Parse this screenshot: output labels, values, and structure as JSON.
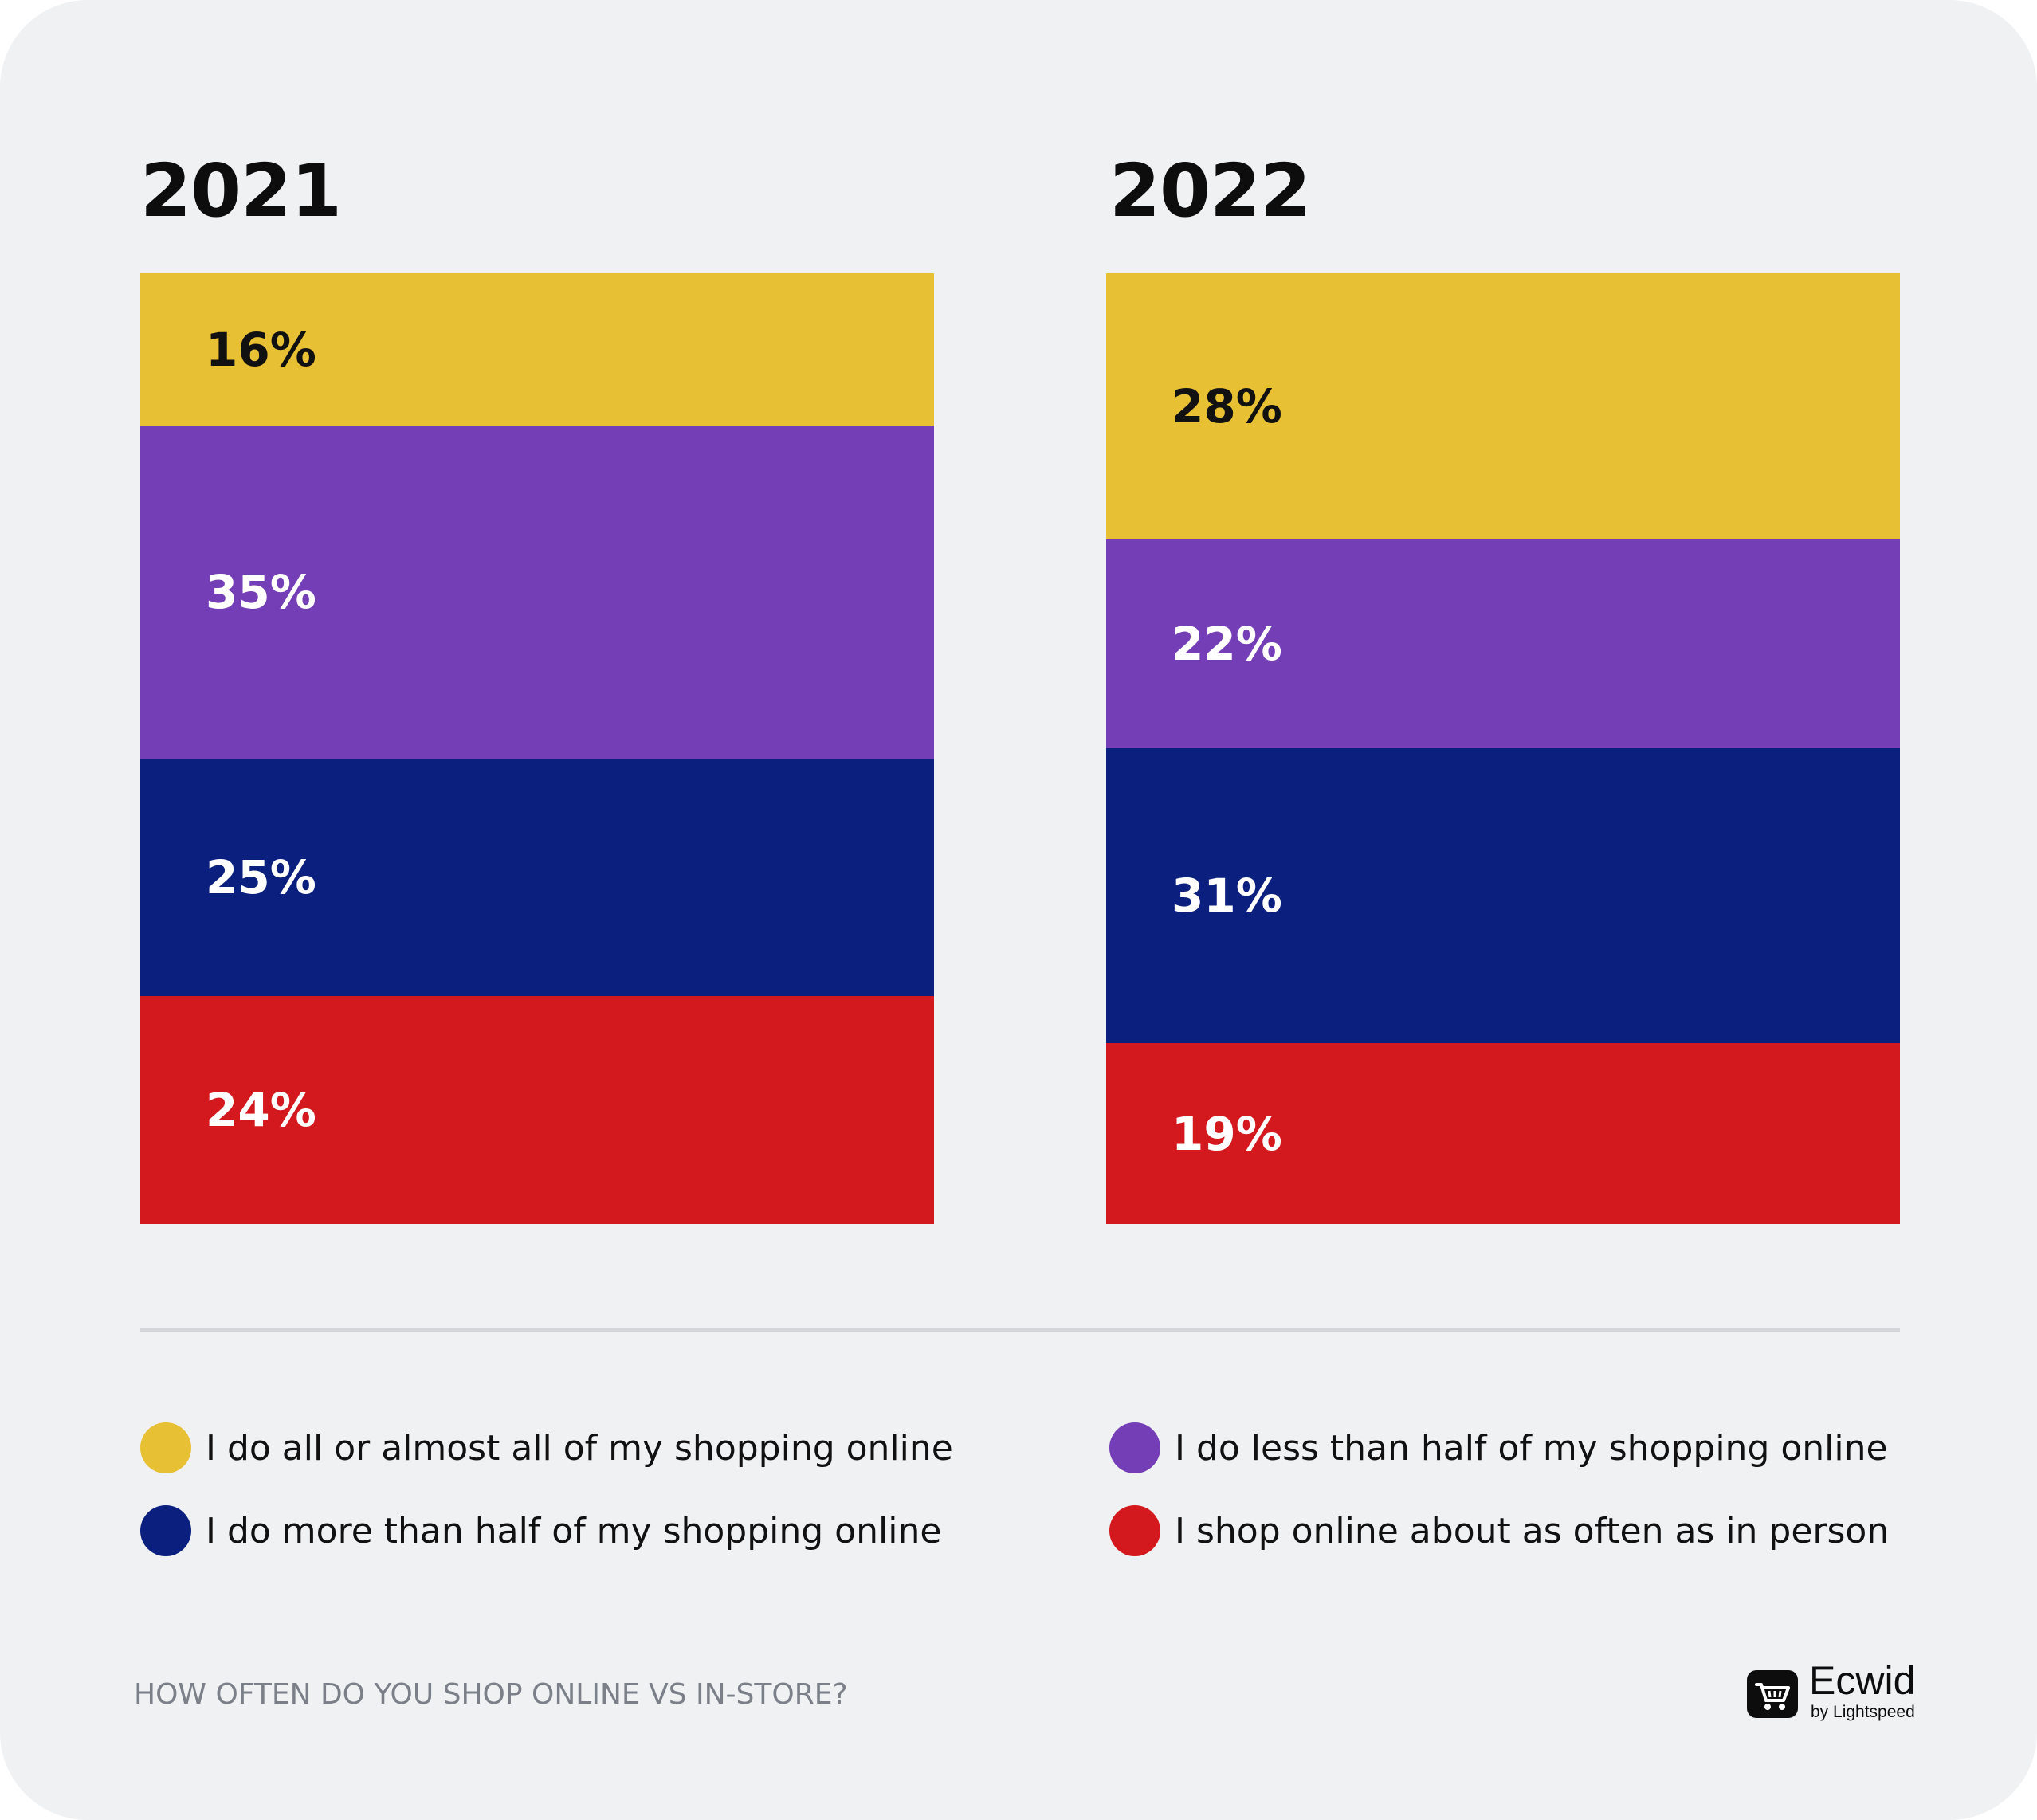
{
  "chart_data": {
    "type": "bar",
    "stacked": true,
    "normalized": true,
    "categories": [
      "2021",
      "2022"
    ],
    "series": [
      {
        "name": "I do all or almost all of my shopping online",
        "color": "#e8c033",
        "values": [
          16,
          28
        ],
        "labels": [
          "16%",
          "28%"
        ],
        "label_color": "#111111"
      },
      {
        "name": "I do less than half of my shopping online",
        "color": "#743eb7",
        "values": [
          35,
          22
        ],
        "labels": [
          "35%",
          "22%"
        ],
        "label_color": "#ffffff"
      },
      {
        "name": "I do more than half of my shopping online",
        "color": "#0b1f7e",
        "values": [
          25,
          31
        ],
        "labels": [
          "25%",
          "31%"
        ],
        "label_color": "#ffffff"
      },
      {
        "name": "I shop online about as often as in person",
        "color": "#d3191e",
        "values": [
          24,
          19
        ],
        "labels": [
          "24%",
          "19%"
        ],
        "label_color": "#ffffff"
      }
    ],
    "legend_order": [
      0,
      1,
      2,
      3
    ],
    "footer": "HOW OFTEN DO YOU SHOP ONLINE VS IN-STORE?",
    "legend_position": "bottom",
    "grid": false
  },
  "brand": {
    "name": "Ecwid",
    "sub": "by Lightspeed",
    "icon": "shopping-cart-icon"
  }
}
